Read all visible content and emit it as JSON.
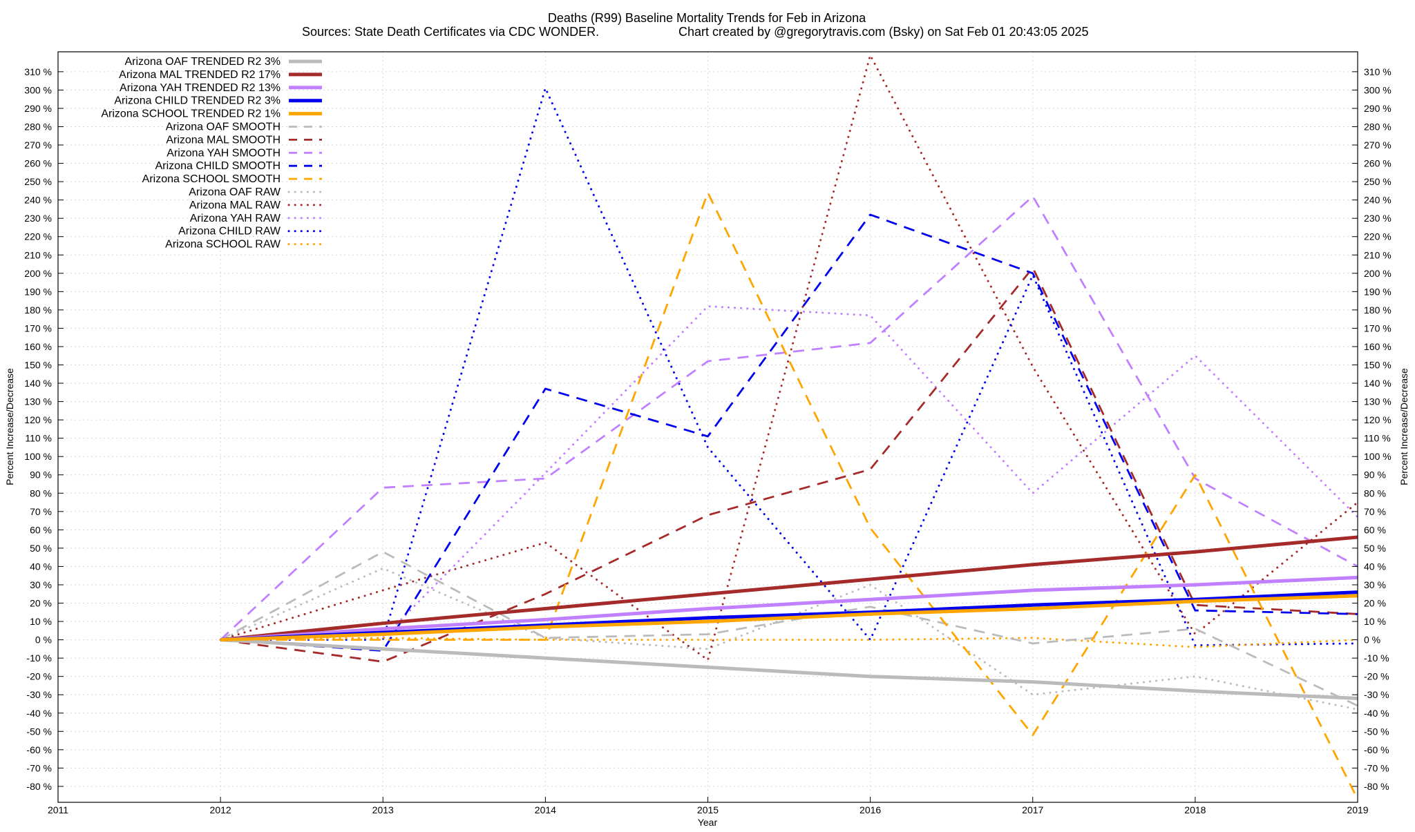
{
  "title_line1": "Deaths (R99)  Baseline Mortality Trends for Feb in Arizona",
  "title_line2_left": "Sources: State Death Certificates via CDC WONDER.",
  "title_line2_right": "Chart created by @gregorytravis.com (Bsky) on Sat Feb 01 20:43:05 2025",
  "chart_data": {
    "type": "line",
    "xlabel": "Year",
    "ylabel_left": "Percent Increase/Decrease",
    "ylabel_right": "Percent Increase/Decrease",
    "xlim": [
      2011,
      2019
    ],
    "ylim": [
      -90,
      320
    ],
    "x_ticks": [
      2011,
      2012,
      2013,
      2014,
      2015,
      2016,
      2017,
      2018,
      2019
    ],
    "x_tick_labels": [
      "2011",
      "2012",
      "2013",
      "2014",
      "2015",
      "2016",
      "2017",
      "2018",
      "2019"
    ],
    "y_ticks": [
      -80,
      -70,
      -60,
      -50,
      -40,
      -30,
      -20,
      -10,
      0,
      10,
      20,
      30,
      40,
      50,
      60,
      70,
      80,
      90,
      100,
      110,
      120,
      130,
      140,
      150,
      160,
      170,
      180,
      190,
      200,
      210,
      220,
      230,
      240,
      250,
      260,
      270,
      280,
      290,
      300,
      310
    ],
    "y_tick_labels": [
      "-80 %",
      "-70 %",
      "-60 %",
      "-50 %",
      "-40 %",
      "-30 %",
      "-20 %",
      "-10 %",
      "0 %",
      "10 %",
      "20 %",
      "30 %",
      "40 %",
      "50 %",
      "60 %",
      "70 %",
      "80 %",
      "90 %",
      "100 %",
      "110 %",
      "120 %",
      "130 %",
      "140 %",
      "150 %",
      "160 %",
      "170 %",
      "180 %",
      "190 %",
      "200 %",
      "210 %",
      "220 %",
      "230 %",
      "240 %",
      "250 %",
      "260 %",
      "270 %",
      "280 %",
      "290 %",
      "300 %",
      "310 %"
    ],
    "grid": true,
    "legend_position": "top-left",
    "series": [
      {
        "name": "Arizona OAF TRENDED R2   3%",
        "style": "solid",
        "color": "#bbbbbb",
        "x": [
          2012,
          2013,
          2014,
          2015,
          2016,
          2017,
          2018,
          2019
        ],
        "values": [
          0,
          -5,
          -10,
          -15,
          -20,
          -23,
          -28,
          -32
        ]
      },
      {
        "name": "Arizona MAL TRENDED R2  17%",
        "style": "solid",
        "color": "#a52a2a",
        "x": [
          2012,
          2013,
          2014,
          2015,
          2016,
          2017,
          2018,
          2019
        ],
        "values": [
          0,
          9,
          17,
          25,
          33,
          41,
          48,
          56
        ]
      },
      {
        "name": "Arizona YAH TRENDED R2  13%",
        "style": "solid",
        "color": "#c080ff",
        "x": [
          2012,
          2013,
          2014,
          2015,
          2016,
          2017,
          2018,
          2019
        ],
        "values": [
          0,
          6,
          11,
          17,
          22,
          27,
          30,
          34
        ]
      },
      {
        "name": "Arizona CHILD TRENDED R2   3%",
        "style": "solid",
        "color": "#0000ee",
        "x": [
          2012,
          2013,
          2014,
          2015,
          2016,
          2017,
          2018,
          2019
        ],
        "values": [
          0,
          4,
          8,
          12,
          15,
          19,
          22,
          26
        ]
      },
      {
        "name": "Arizona SCHOOL TRENDED R2   1%",
        "style": "solid",
        "color": "#ffa500",
        "x": [
          2012,
          2013,
          2014,
          2015,
          2016,
          2017,
          2018,
          2019
        ],
        "values": [
          0,
          3,
          7,
          10,
          14,
          17,
          21,
          24
        ]
      },
      {
        "name": "Arizona OAF SMOOTH",
        "style": "dash",
        "color": "#bbbbbb",
        "x": [
          2012,
          2013,
          2014,
          2015,
          2016,
          2017,
          2018,
          2019
        ],
        "values": [
          0,
          48,
          1,
          3,
          18,
          -2,
          6,
          -36
        ]
      },
      {
        "name": "Arizona MAL SMOOTH",
        "style": "dash",
        "color": "#a52a2a",
        "x": [
          2012,
          2013,
          2014,
          2015,
          2016,
          2017,
          2018,
          2019
        ],
        "values": [
          0,
          -12,
          25,
          68,
          93,
          203,
          19,
          14
        ]
      },
      {
        "name": "Arizona YAH SMOOTH",
        "style": "dash",
        "color": "#c080ff",
        "x": [
          2012,
          2013,
          2014,
          2015,
          2016,
          2017,
          2018,
          2019
        ],
        "values": [
          0,
          83,
          88,
          152,
          162,
          242,
          88,
          40
        ]
      },
      {
        "name": "Arizona CHILD SMOOTH",
        "style": "dash",
        "color": "#0000ee",
        "x": [
          2012,
          2013,
          2014,
          2015,
          2016,
          2017,
          2018,
          2019
        ],
        "values": [
          0,
          -6,
          137,
          111,
          232,
          200,
          16,
          14
        ]
      },
      {
        "name": "Arizona SCHOOL SMOOTH",
        "style": "dash",
        "color": "#ffa500",
        "x": [
          2012,
          2013,
          2014,
          2015,
          2016,
          2017,
          2018,
          2019
        ],
        "values": [
          0,
          0,
          0,
          244,
          61,
          -52,
          90,
          -87
        ]
      },
      {
        "name": "Arizona OAF RAW",
        "style": "dot",
        "color": "#bbbbbb",
        "x": [
          2012,
          2013,
          2014,
          2015,
          2016,
          2017,
          2018,
          2019
        ],
        "values": [
          0,
          39,
          1,
          -5,
          30,
          -30,
          -20,
          -38
        ]
      },
      {
        "name": "Arizona MAL RAW",
        "style": "dot",
        "color": "#a52a2a",
        "x": [
          2012,
          2013,
          2014,
          2015,
          2016,
          2017,
          2018,
          2019
        ],
        "values": [
          0,
          27,
          53,
          -11,
          319,
          149,
          3,
          75
        ]
      },
      {
        "name": "Arizona YAH RAW",
        "style": "dot",
        "color": "#c080ff",
        "x": [
          2012,
          2013,
          2014,
          2015,
          2016,
          2017,
          2018,
          2019
        ],
        "values": [
          0,
          1,
          91,
          182,
          177,
          80,
          155,
          67
        ]
      },
      {
        "name": "Arizona CHILD RAW",
        "style": "dot",
        "color": "#0000ee",
        "x": [
          2012,
          2013,
          2014,
          2015,
          2016,
          2017,
          2018,
          2019
        ],
        "values": [
          0,
          0,
          301,
          105,
          0,
          199,
          -3,
          -2
        ]
      },
      {
        "name": "Arizona SCHOOL RAW",
        "style": "dot",
        "color": "#ffa500",
        "x": [
          2012,
          2013,
          2014,
          2015,
          2016,
          2017,
          2018,
          2019
        ],
        "values": [
          0,
          1,
          0,
          0,
          0,
          1,
          -4,
          0
        ]
      }
    ]
  }
}
